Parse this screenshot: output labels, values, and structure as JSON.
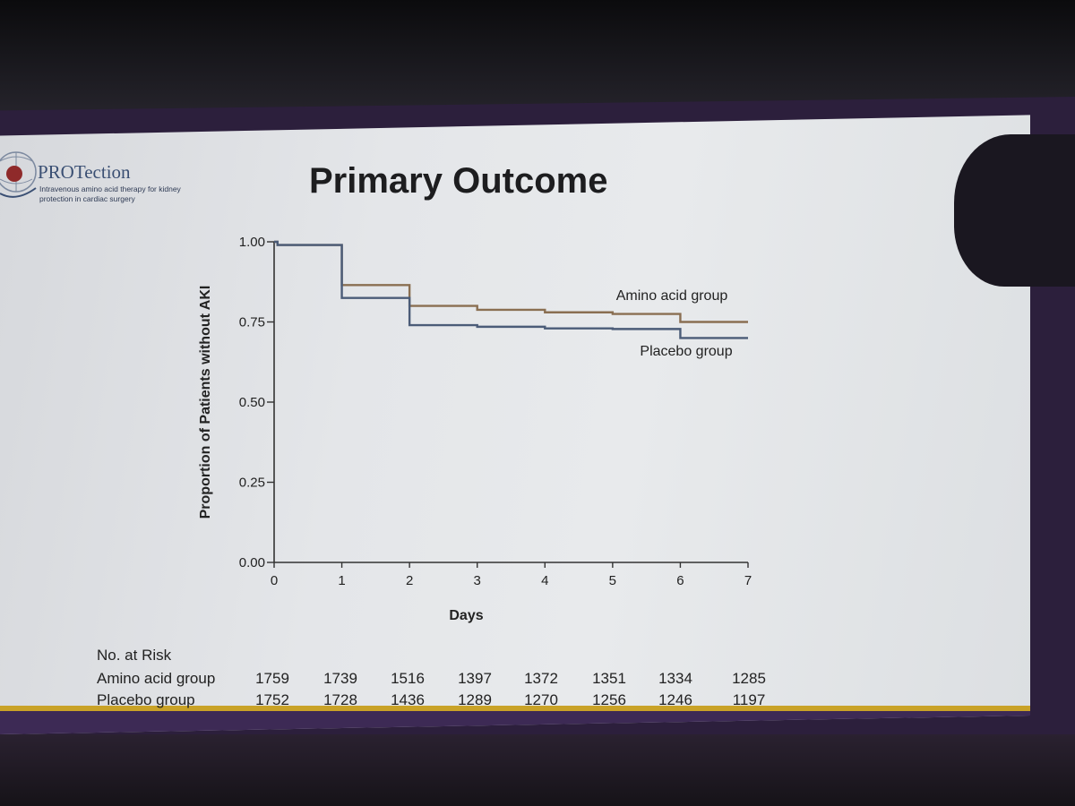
{
  "logo": {
    "title": "PROTection",
    "subtitle": "Intravenous amino acid therapy for kidney protection in cardiac surgery"
  },
  "slide_title": "Primary Outcome",
  "colors": {
    "amino": "#8a6f52",
    "placebo": "#4b5c78",
    "accent_gold": "#c9a227",
    "accent_purple": "#3d2a55"
  },
  "chart_data": {
    "type": "line",
    "xlabel": "Days",
    "ylabel": "Proportion of Patients without AKI",
    "xlim": [
      0,
      7
    ],
    "ylim": [
      0,
      1
    ],
    "x_ticks": [
      "0",
      "1",
      "2",
      "3",
      "4",
      "5",
      "6",
      "7"
    ],
    "y_ticks": [
      "0.00",
      "0.25",
      "0.50",
      "0.75",
      "1.00"
    ],
    "step": true,
    "series": [
      {
        "name": "Amino acid group",
        "x": [
          0,
          0.05,
          1,
          2,
          3,
          4,
          5,
          6,
          7
        ],
        "y": [
          1.0,
          0.99,
          0.865,
          0.8,
          0.788,
          0.78,
          0.775,
          0.75,
          0.75
        ]
      },
      {
        "name": "Placebo group",
        "x": [
          0,
          0.05,
          1,
          2,
          3,
          4,
          5,
          6,
          7
        ],
        "y": [
          1.0,
          0.99,
          0.825,
          0.74,
          0.735,
          0.73,
          0.728,
          0.7,
          0.7
        ]
      }
    ],
    "risk_table": {
      "title": "No. at Risk",
      "rows": [
        {
          "label": "Amino acid group",
          "values": [
            "1759",
            "1739",
            "1516",
            "1397",
            "1372",
            "1351",
            "1334",
            "1285"
          ]
        },
        {
          "label": "Placebo group",
          "values": [
            "1752",
            "1728",
            "1436",
            "1289",
            "1270",
            "1256",
            "1246",
            "1197"
          ]
        }
      ]
    }
  }
}
